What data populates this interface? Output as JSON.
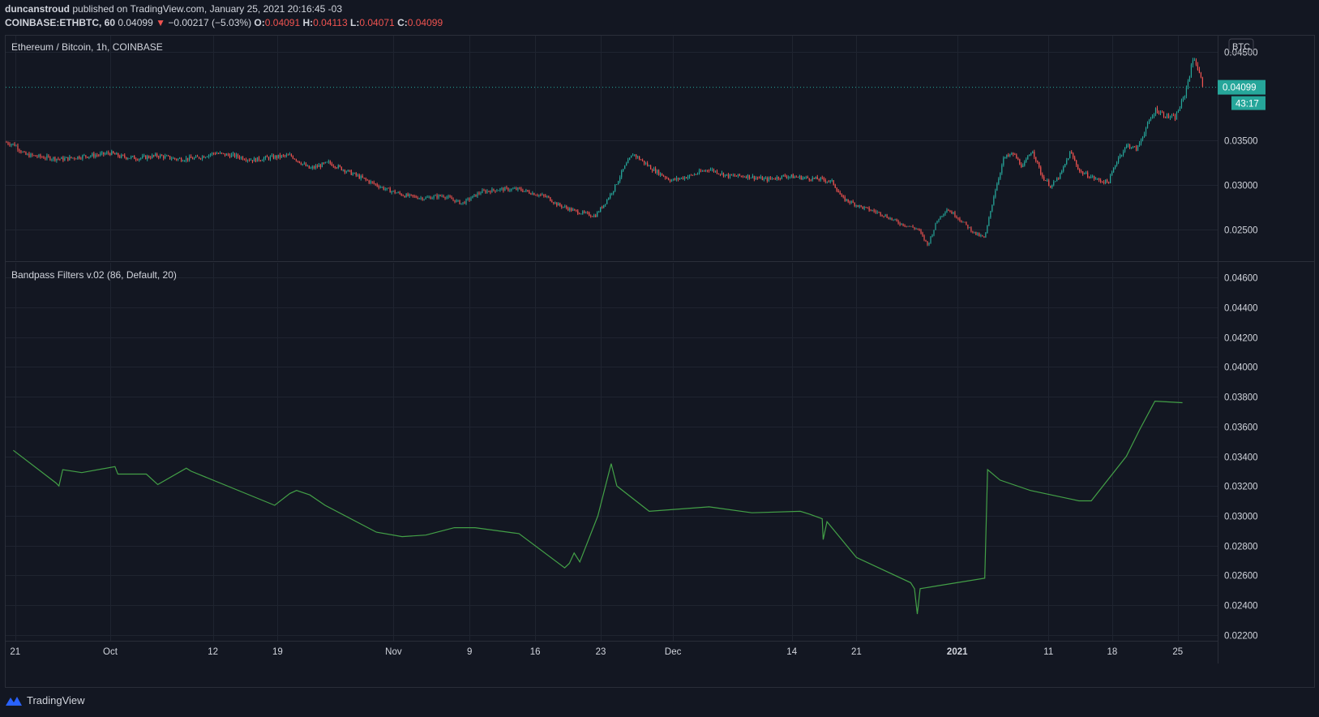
{
  "header": {
    "author": "duncanstroud",
    "published": "published on TradingView.com, January 25, 2021 20:16:45 -03",
    "symbol_line": "COINBASE:ETHBTC, 60",
    "last": "0.04099",
    "arrow": "▼",
    "change": "−0.00217 (−5.03%)",
    "o_label": "O:",
    "o_value": "0.04091",
    "h_label": "H:",
    "h_value": "0.04113",
    "l_label": "L:",
    "l_value": "0.04071",
    "c_label": "C:",
    "c_value": "0.04099"
  },
  "footer": {
    "brand": "TradingView"
  },
  "colors": {
    "background": "#131722",
    "grid": "#1f2430",
    "text": "#d1d4dc",
    "up": "#26a69a",
    "down": "#ef5350",
    "indicator": "#43a047",
    "price_tag": "#26a69a"
  },
  "chart_data": [
    {
      "type": "candlestick",
      "title": "Ethereum / Bitcoin, 1h, COINBASE",
      "currency": "BTC",
      "ylim": [
        0.0215,
        0.0468
      ],
      "yticks": [
        0.045,
        0.035,
        0.03,
        0.025
      ],
      "ytick_labels": [
        "0.04500",
        "0.03500",
        "0.03000",
        "0.02500"
      ],
      "last_price_label": "0.04099",
      "last_price": 0.04099,
      "countdown": "43:17",
      "xlim": [
        0,
        127.5
      ],
      "close_path_x": [
        0,
        1,
        2,
        4,
        6,
        8,
        10,
        11,
        12,
        14,
        16,
        18,
        20,
        22,
        23,
        24,
        26,
        28,
        30,
        32,
        34,
        36,
        38,
        40,
        42,
        44,
        46,
        48,
        50,
        52,
        54,
        56,
        57,
        58,
        60,
        62,
        63,
        64,
        65,
        66,
        68,
        70,
        72,
        74,
        76,
        78,
        80,
        82,
        84,
        86,
        87,
        88,
        90,
        92,
        94,
        96,
        97,
        98,
        99,
        100,
        101,
        102,
        103,
        104,
        105,
        106,
        107,
        108,
        109,
        110,
        111,
        112,
        113,
        114,
        115,
        116,
        117,
        118,
        119,
        120,
        121,
        122,
        123,
        124,
        125,
        126
      ],
      "close_path_y": [
        0.0348,
        0.0345,
        0.0334,
        0.0331,
        0.0329,
        0.0332,
        0.0334,
        0.0336,
        0.0332,
        0.033,
        0.0333,
        0.0329,
        0.033,
        0.0336,
        0.0334,
        0.0333,
        0.0328,
        0.0331,
        0.0333,
        0.0318,
        0.0325,
        0.0315,
        0.0305,
        0.0295,
        0.0288,
        0.0285,
        0.0288,
        0.0279,
        0.0292,
        0.0295,
        0.0295,
        0.0289,
        0.0286,
        0.0278,
        0.027,
        0.0265,
        0.0279,
        0.0296,
        0.0318,
        0.0335,
        0.0318,
        0.0305,
        0.031,
        0.0318,
        0.031,
        0.031,
        0.0306,
        0.031,
        0.0308,
        0.0306,
        0.0303,
        0.0285,
        0.0275,
        0.0268,
        0.0257,
        0.025,
        0.0232,
        0.026,
        0.0273,
        0.0265,
        0.0255,
        0.0245,
        0.024,
        0.029,
        0.033,
        0.0335,
        0.032,
        0.034,
        0.031,
        0.0298,
        0.0312,
        0.0337,
        0.0315,
        0.031,
        0.0305,
        0.0303,
        0.033,
        0.0345,
        0.034,
        0.0365,
        0.0385,
        0.0378,
        0.0375,
        0.04,
        0.0445,
        0.041
      ]
    },
    {
      "type": "line",
      "title": "Bandpass Filters v.02 (86, Default, 20)",
      "ylim": [
        0.0216,
        0.047
      ],
      "yticks": [
        0.046,
        0.044,
        0.042,
        0.04,
        0.038,
        0.036,
        0.034,
        0.032,
        0.03,
        0.028,
        0.026,
        0.024,
        0.022
      ],
      "ytick_labels": [
        "0.04600",
        "0.04400",
        "0.04200",
        "0.04000",
        "0.03800",
        "0.03600",
        "0.03400",
        "0.03200",
        "0.03000",
        "0.02800",
        "0.02600",
        "0.02400",
        "0.02200"
      ],
      "x": [
        0.8,
        5.3,
        5.6,
        6.0,
        8.0,
        11.5,
        11.8,
        14.8,
        16.0,
        19.0,
        19.5,
        28.3,
        29.9,
        30.6,
        32.0,
        33.6,
        39.0,
        41.7,
        44.2,
        47.2,
        49.4,
        54.0,
        58.8,
        59.3,
        59.8,
        60.4,
        62.3,
        63.7,
        64.3,
        67.7,
        74.0,
        78.5,
        83.6,
        84.6,
        85.9,
        86.0,
        86.4,
        89.5,
        95.2,
        95.6,
        95.9,
        96.2,
        98.1,
        103.0,
        103.3,
        104.6,
        107.8,
        112.2,
        112.9,
        114.2,
        117.9,
        119.3,
        120.9,
        123.8
      ],
      "y": [
        0.0344,
        0.0322,
        0.032,
        0.0331,
        0.0329,
        0.0333,
        0.0328,
        0.0328,
        0.0321,
        0.0332,
        0.033,
        0.0307,
        0.0315,
        0.0317,
        0.0314,
        0.0307,
        0.0289,
        0.0286,
        0.0287,
        0.0292,
        0.0292,
        0.0288,
        0.0265,
        0.0268,
        0.0275,
        0.0269,
        0.03,
        0.0335,
        0.032,
        0.0303,
        0.0306,
        0.0302,
        0.0303,
        0.0301,
        0.0298,
        0.0284,
        0.0296,
        0.0272,
        0.0255,
        0.0251,
        0.0234,
        0.0251,
        0.0253,
        0.0258,
        0.0331,
        0.0324,
        0.0317,
        0.0311,
        0.031,
        0.031,
        0.034,
        0.0358,
        0.0377,
        0.0376
      ]
    },
    {
      "type": "x-axis",
      "labels": [
        "21",
        "Oct",
        "12",
        "19",
        "Nov",
        "9",
        "16",
        "23",
        "Dec",
        "14",
        "21",
        "2021",
        "11",
        "18",
        "25"
      ],
      "label_x": [
        1,
        11,
        21.8,
        28.6,
        40.8,
        48.8,
        55.7,
        62.6,
        70.2,
        82.7,
        89.5,
        100.1,
        109.7,
        116.4,
        123.3
      ],
      "bold": [
        false,
        false,
        false,
        false,
        false,
        false,
        false,
        false,
        false,
        false,
        false,
        true,
        false,
        false,
        false
      ]
    }
  ]
}
